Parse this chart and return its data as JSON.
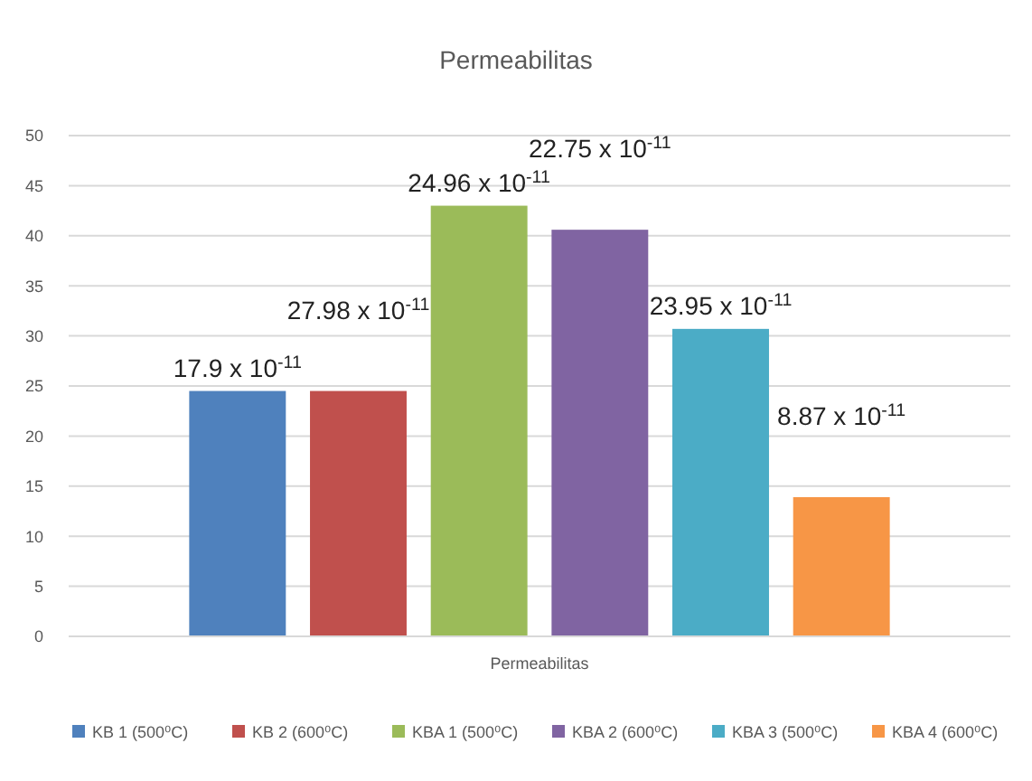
{
  "chart_data": {
    "type": "bar",
    "title": "Permeabilitas",
    "categories": [
      "Permeabilitas"
    ],
    "series": [
      {
        "name": "KB 1 (500⁰C)",
        "color": "#4f81bd",
        "values": [
          24.5
        ]
      },
      {
        "name": "KB 2 (600⁰C)",
        "color": "#c0504d",
        "values": [
          24.5
        ]
      },
      {
        "name": "KBA 1 (500⁰C)",
        "color": "#9bbb59",
        "values": [
          43.0
        ]
      },
      {
        "name": "KBA 2 (600⁰C)",
        "color": "#8064a2",
        "values": [
          40.6
        ]
      },
      {
        "name": "KBA 3 (500⁰C)",
        "color": "#4bacc6",
        "values": [
          30.7
        ]
      },
      {
        "name": "KBA 4 (600⁰C)",
        "color": "#f79646",
        "values": [
          13.9
        ]
      }
    ],
    "annotations": [
      "17.9 x 10$^{-11}$",
      "27.98 x 10$^{-11}$",
      "24.96 x 10$^{-11}$",
      "22.75 x 10$^{-11}$",
      "23.95 x 10$^{-11}$",
      "8.87 x 10$^{-11}$"
    ],
    "ylim": [
      0,
      50
    ],
    "yticks": [
      0,
      5,
      10,
      15,
      20,
      25,
      30,
      35,
      40,
      45,
      50
    ],
    "grid": "y",
    "legend": "bottom"
  }
}
